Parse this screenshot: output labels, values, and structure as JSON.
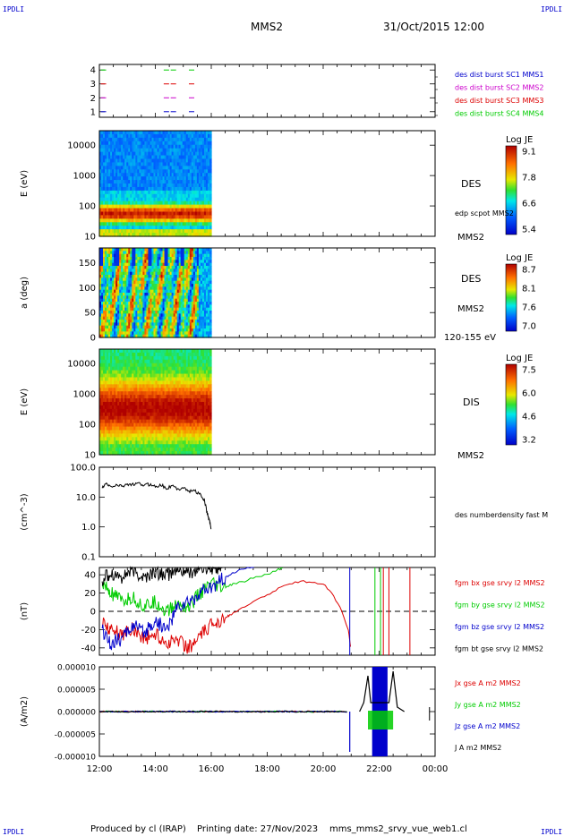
{
  "header": {
    "left_tag": "IPDLI",
    "right_tag": "IPDLI",
    "mission": "MMS2",
    "datetime": "31/Oct/2015 12:00"
  },
  "footer": {
    "produced_by": "Produced by cl (IRAP)",
    "printing_date": "Printing date: 27/Nov/2023",
    "script_name": "mms_mms2_srvy_vue_web1.cl",
    "bottom_left_tag": "IPDLI",
    "bottom_right_tag": "IPDLI"
  },
  "colors": {
    "blue": "#0000cc",
    "red": "#dd0000",
    "green": "#00cc00",
    "magenta": "#cc00cc",
    "black": "#000000",
    "grid_dash": "#000000"
  },
  "time_axis": {
    "ticks": [
      "12:00",
      "14:00",
      "16:00",
      "18:00",
      "20:00",
      "22:00",
      "00:00"
    ],
    "range_hours": [
      12,
      24
    ]
  },
  "chart_data": [
    {
      "id": "availability",
      "type": "scatter",
      "yticks": [
        "1",
        "2",
        "3",
        "4"
      ],
      "ylim": [
        0.6,
        4.4
      ],
      "series": [
        {
          "name": "des dist burst SC1 MMS1",
          "color": "#0000cc",
          "level": 1,
          "x_hours": [
            12.05,
            14.3,
            14.55,
            15.2
          ]
        },
        {
          "name": "des dist burst SC2 MMS2",
          "color": "#cc00cc",
          "level": 2,
          "x_hours": [
            12.05,
            14.3,
            14.55,
            15.2
          ]
        },
        {
          "name": "des dist burst SC3 MMS3",
          "color": "#dd0000",
          "level": 3,
          "x_hours": [
            12.05,
            14.3,
            14.55,
            15.2
          ]
        },
        {
          "name": "des dist burst SC4 MMS4",
          "color": "#00cc00",
          "level": 4,
          "x_hours": [
            12.05,
            14.3,
            14.55,
            15.2
          ]
        }
      ]
    },
    {
      "id": "des-energy",
      "type": "heatmap",
      "ylabel": "E (eV)",
      "yscale": "log",
      "ylim": [
        10,
        30000
      ],
      "yticks": [
        "10",
        "100",
        "1000",
        "10000"
      ],
      "x_range_hours": [
        12.0,
        16.0
      ],
      "colorbar": {
        "title": "Log JE",
        "ticks": [
          "9.1",
          "7.8",
          "6.6",
          "5.4"
        ],
        "range": [
          5.4,
          9.1
        ]
      },
      "right_labels": [
        "DES",
        "edp scpot MMS2",
        "MMS2"
      ]
    },
    {
      "id": "des-pitch",
      "type": "heatmap",
      "ylabel": "a (deg)",
      "ylim": [
        0,
        180
      ],
      "yticks": [
        "0",
        "50",
        "100",
        "150"
      ],
      "x_range_hours": [
        12.0,
        16.0
      ],
      "colorbar": {
        "title": "Log JE",
        "ticks": [
          "8.7",
          "8.1",
          "7.6",
          "7.0"
        ],
        "range": [
          7.0,
          8.7
        ]
      },
      "right_labels": [
        "DES",
        "MMS2",
        "120-155 eV"
      ]
    },
    {
      "id": "dis-energy",
      "type": "heatmap",
      "ylabel": "E (eV)",
      "yscale": "log",
      "ylim": [
        10,
        30000
      ],
      "yticks": [
        "10",
        "100",
        "1000",
        "10000"
      ],
      "x_range_hours": [
        12.0,
        16.0
      ],
      "colorbar": {
        "title": "Log JE",
        "ticks": [
          "7.5",
          "6.0",
          "4.6",
          "3.2"
        ],
        "range": [
          3.2,
          7.5
        ]
      },
      "right_labels": [
        "DIS",
        "MMS2"
      ]
    },
    {
      "id": "density",
      "type": "line",
      "ylabel": "(cm^-3)",
      "yscale": "log",
      "ylim": [
        0.1,
        100
      ],
      "yticks": [
        "0.1",
        "1.0",
        "10.0",
        "100.0"
      ],
      "series": [
        {
          "name": "des numberdensity fast M",
          "color": "#000000",
          "x": [
            12.1,
            12.25,
            12.4,
            12.6,
            12.8,
            13.0,
            13.2,
            13.4,
            13.6,
            13.8,
            14.0,
            14.2,
            14.4,
            14.6,
            14.8,
            15.0,
            15.2,
            15.4,
            15.6,
            15.75,
            15.85,
            15.9,
            15.95,
            16.0
          ],
          "y": [
            20,
            28,
            22,
            25,
            24,
            27,
            26,
            28,
            25,
            27,
            23,
            26,
            20,
            24,
            18,
            22,
            15,
            17,
            12,
            8,
            3,
            2,
            1.5,
            0.8
          ]
        }
      ]
    },
    {
      "id": "magnetic-field",
      "type": "line",
      "ylabel": "(nT)",
      "ylim": [
        -48,
        48
      ],
      "yticks": [
        "-40",
        "-20",
        "0",
        "20",
        "40"
      ],
      "series": [
        {
          "name": "fgm bx gse srvy l2 MMS2",
          "color": "#dd0000",
          "x": [
            12.1,
            12.4,
            12.8,
            13.2,
            13.6,
            14.0,
            14.4,
            14.8,
            15.2,
            15.6,
            16.0,
            16.4,
            16.8,
            17.2,
            17.6,
            18.0,
            18.4,
            18.8,
            19.2,
            19.6,
            20.0,
            20.3,
            20.6,
            20.9,
            21.0
          ],
          "y": [
            -10,
            -20,
            -25,
            -18,
            -30,
            -25,
            -35,
            -30,
            -40,
            -28,
            -15,
            -8,
            -2,
            5,
            12,
            18,
            25,
            30,
            33,
            32,
            30,
            20,
            5,
            -20,
            -46
          ]
        },
        {
          "name": "fgm by gse srvy l2 MMS2",
          "color": "#00cc00",
          "x": [
            12.1,
            12.4,
            12.8,
            13.2,
            13.6,
            14.0,
            14.4,
            14.8,
            15.2,
            15.6,
            16.0,
            16.4,
            16.8,
            17.2,
            17.6,
            18.0,
            18.4,
            18.6
          ],
          "y": [
            30,
            20,
            10,
            15,
            5,
            10,
            0,
            8,
            5,
            20,
            30,
            25,
            30,
            33,
            38,
            40,
            46,
            48
          ]
        },
        {
          "name": "fgm bz gse srvy l2 MMS2",
          "color": "#0000cc",
          "x": [
            12.1,
            12.4,
            12.8,
            13.2,
            13.6,
            14.0,
            14.4,
            14.8,
            15.2,
            15.6,
            16.0,
            16.4,
            16.8,
            17.0,
            17.3,
            17.6
          ],
          "y": [
            -20,
            -35,
            -30,
            -15,
            -25,
            -10,
            -20,
            5,
            10,
            20,
            25,
            35,
            42,
            45,
            48,
            49
          ]
        },
        {
          "name": "fgm bt gse srvy l2 MMS2",
          "color": "#000000",
          "x": [
            12.1,
            12.4,
            12.8,
            13.2,
            13.6,
            14.0,
            14.4,
            14.8,
            15.2,
            15.6,
            16.0,
            16.2,
            16.4
          ],
          "y": [
            35,
            42,
            38,
            44,
            36,
            43,
            40,
            45,
            42,
            46,
            47,
            48,
            49
          ]
        }
      ]
    },
    {
      "id": "current-density",
      "type": "line",
      "ylabel": "(A/m2)",
      "ylim": [
        -0.0001,
        0.0001
      ],
      "yticks": [
        "-0.000010",
        "-0.000005",
        "0.000000",
        "0.000005",
        "0.000010"
      ],
      "series": [
        {
          "name": "Jx gse A m2 MMS2",
          "color": "#dd0000"
        },
        {
          "name": "Jy gse A m2 MMS2",
          "color": "#00cc00"
        },
        {
          "name": "Jz gse A m2 MMS2",
          "color": "#0000cc"
        },
        {
          "name": "J A m2 MMS2",
          "color": "#000000"
        }
      ]
    }
  ]
}
